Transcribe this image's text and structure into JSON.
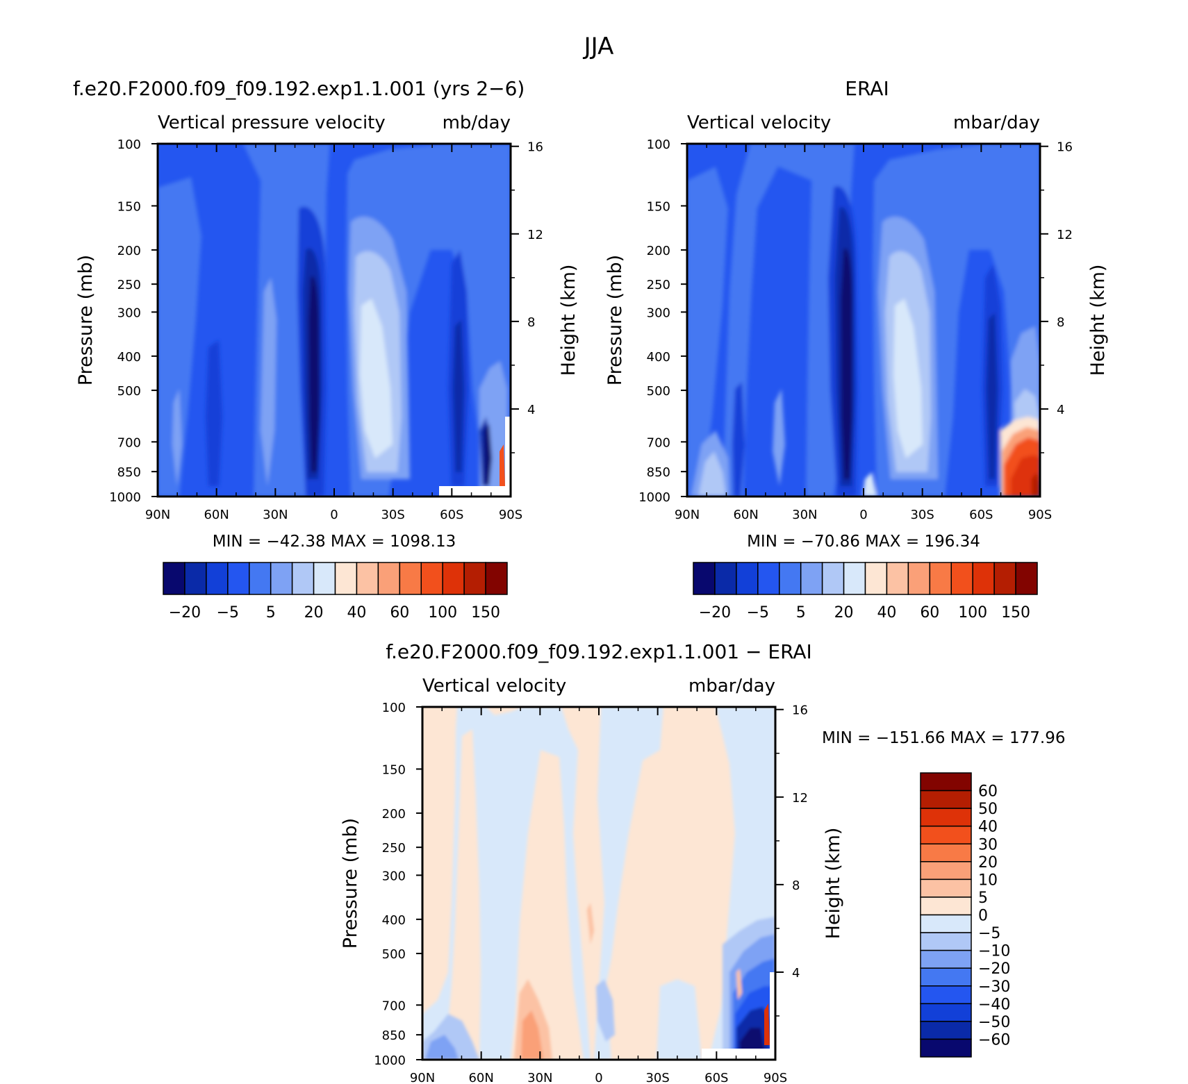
{
  "figure": {
    "title": "JJA"
  },
  "chart_data": [
    {
      "type": "heatmap",
      "title": "f.e20.F2000.f09_f09.192.exp1.1.001 (yrs 2−6)",
      "subtitle_left": "Vertical pressure velocity",
      "subtitle_right": "mb/day",
      "ylabel": "Pressure (mb)",
      "y2label": "Height (km)",
      "x_ticks": [
        "90N",
        "60N",
        "30N",
        "0",
        "30S",
        "60S",
        "90S"
      ],
      "y_ticks": [
        "100",
        "150",
        "200",
        "250",
        "300",
        "400",
        "500",
        "700",
        "850",
        "1000"
      ],
      "y2_ticks": [
        "16",
        "12",
        "8",
        "4"
      ],
      "xlim": [
        "90N",
        "90S"
      ],
      "ylim": [
        1000,
        100
      ],
      "min_max_text": "MIN = −42.38   MAX = 1098.13",
      "min": -42.38,
      "max": 1098.13,
      "colorbar": {
        "orientation": "horizontal",
        "labels": [
          "−20",
          "−5",
          "5",
          "20",
          "40",
          "60",
          "100",
          "150"
        ]
      }
    },
    {
      "type": "heatmap",
      "title": "ERAI",
      "subtitle_left": "Vertical velocity",
      "subtitle_right": "mbar/day",
      "ylabel": "Pressure (mb)",
      "y2label": "Height (km)",
      "x_ticks": [
        "90N",
        "60N",
        "30N",
        "0",
        "30S",
        "60S",
        "90S"
      ],
      "y_ticks": [
        "100",
        "150",
        "200",
        "250",
        "300",
        "400",
        "500",
        "700",
        "850",
        "1000"
      ],
      "y2_ticks": [
        "16",
        "12",
        "8",
        "4"
      ],
      "xlim": [
        "90N",
        "90S"
      ],
      "ylim": [
        1000,
        100
      ],
      "min_max_text": "MIN = −70.86   MAX = 196.34",
      "min": -70.86,
      "max": 196.34,
      "colorbar": {
        "orientation": "horizontal",
        "labels": [
          "−20",
          "−5",
          "5",
          "20",
          "40",
          "60",
          "100",
          "150"
        ]
      }
    },
    {
      "type": "heatmap",
      "title": "f.e20.F2000.f09_f09.192.exp1.1.001 − ERAI",
      "subtitle_left": "Vertical velocity",
      "subtitle_right": "mbar/day",
      "ylabel": "Pressure (mb)",
      "y2label": "Height (km)",
      "x_ticks": [
        "90N",
        "60N",
        "30N",
        "0",
        "30S",
        "60S",
        "90S"
      ],
      "y_ticks": [
        "100",
        "150",
        "200",
        "250",
        "300",
        "400",
        "500",
        "700",
        "850",
        "1000"
      ],
      "y2_ticks": [
        "16",
        "12",
        "8",
        "4"
      ],
      "xlim": [
        "90N",
        "90S"
      ],
      "ylim": [
        1000,
        100
      ],
      "min_max_text": "MIN = −151.66   MAX = 177.96",
      "min": -151.66,
      "max": 177.96,
      "colorbar": {
        "orientation": "vertical",
        "labels": [
          "60",
          "50",
          "40",
          "30",
          "20",
          "10",
          "5",
          "0",
          "−5",
          "−10",
          "−20",
          "−30",
          "−40",
          "−50",
          "−60"
        ]
      }
    }
  ],
  "colors": {
    "field_palette": [
      "#08086e",
      "#0a2aa8",
      "#1240d8",
      "#2456f0",
      "#4478f2",
      "#7ea2f4",
      "#b0c8f6",
      "#d8e8fa",
      "#fde6d4",
      "#fcc2a4",
      "#faa078",
      "#f87a46",
      "#f2501c",
      "#de3208",
      "#b41e02",
      "#820400"
    ],
    "diff_palette": [
      "#820400",
      "#b41e02",
      "#de3208",
      "#f2501c",
      "#f87a46",
      "#faa078",
      "#fcc2a4",
      "#fde6d4",
      "#d8e8fa",
      "#b0c8f6",
      "#7ea2f4",
      "#4478f2",
      "#2456f0",
      "#1240d8",
      "#0a2aa8",
      "#08086e"
    ]
  }
}
